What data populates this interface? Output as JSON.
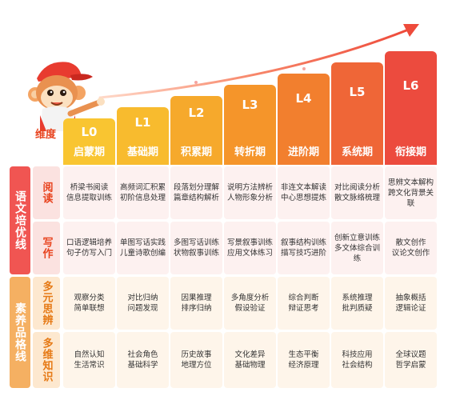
{
  "header_dim": "维度",
  "levels": [
    {
      "code": "L0",
      "name": "启蒙期",
      "color": "#f9c531"
    },
    {
      "code": "L1",
      "name": "基础期",
      "color": "#f8bb2e"
    },
    {
      "code": "L2",
      "name": "积累期",
      "color": "#f6a92c"
    },
    {
      "code": "L3",
      "name": "转折期",
      "color": "#f5952a"
    },
    {
      "code": "L4",
      "name": "进阶期",
      "color": "#f27f2e"
    },
    {
      "code": "L5",
      "name": "系统期",
      "color": "#ef6637"
    },
    {
      "code": "L6",
      "name": "衔接期",
      "color": "#ec4b3e"
    }
  ],
  "categories": [
    {
      "label": "语文培优线",
      "style": "red",
      "rows": [
        {
          "label": "阅读",
          "cells": [
            [
              "桥梁书阅读",
              "信息提取训练"
            ],
            [
              "高频词汇积累",
              "初阶信息处理"
            ],
            [
              "段落划分理解",
              "篇章结构解析"
            ],
            [
              "说明方法辨析",
              "人物形象分析"
            ],
            [
              "非连文本解读",
              "中心思想提炼"
            ],
            [
              "对比阅读分析",
              "散文脉络梳理"
            ],
            [
              "思辨文本解构",
              "跨文化背景关联"
            ]
          ]
        },
        {
          "label": "写作",
          "cells": [
            [
              "口语逻辑培养",
              "句子仿写入门"
            ],
            [
              "单图写话实践",
              "儿童诗歌创编"
            ],
            [
              "多图写话训练",
              "状物叙事训练"
            ],
            [
              "写景叙事训练",
              "应用文体练习"
            ],
            [
              "叙事结构训练",
              "描写技巧进阶"
            ],
            [
              "创新立意训练",
              "多文体综合训练"
            ],
            [
              "散文创作",
              "议论文创作"
            ]
          ]
        }
      ]
    },
    {
      "label": "素养品格线",
      "style": "orange",
      "rows": [
        {
          "label": "多元思辨",
          "cells": [
            [
              "观察分类",
              "简单联想"
            ],
            [
              "对比归纳",
              "问题发现"
            ],
            [
              "因果推理",
              "排序归纳"
            ],
            [
              "多角度分析",
              "假设验证"
            ],
            [
              "综合判断",
              "辩证思考"
            ],
            [
              "系统推理",
              "批判质疑"
            ],
            [
              "抽象概括",
              "逻辑论证"
            ]
          ]
        },
        {
          "label": "多维知识",
          "cells": [
            [
              "自然认知",
              "生活常识"
            ],
            [
              "社会角色",
              "基础科学"
            ],
            [
              "历史故事",
              "地理方位"
            ],
            [
              "文化差异",
              "基础物理"
            ],
            [
              "生态平衡",
              "经济原理"
            ],
            [
              "科技应用",
              "社会结构"
            ],
            [
              "全球议题",
              "哲学启蒙"
            ]
          ]
        }
      ]
    }
  ],
  "colors": {
    "arrow": "#ee4b3b",
    "red_category": "#f05552",
    "orange_category": "#f5b062"
  }
}
